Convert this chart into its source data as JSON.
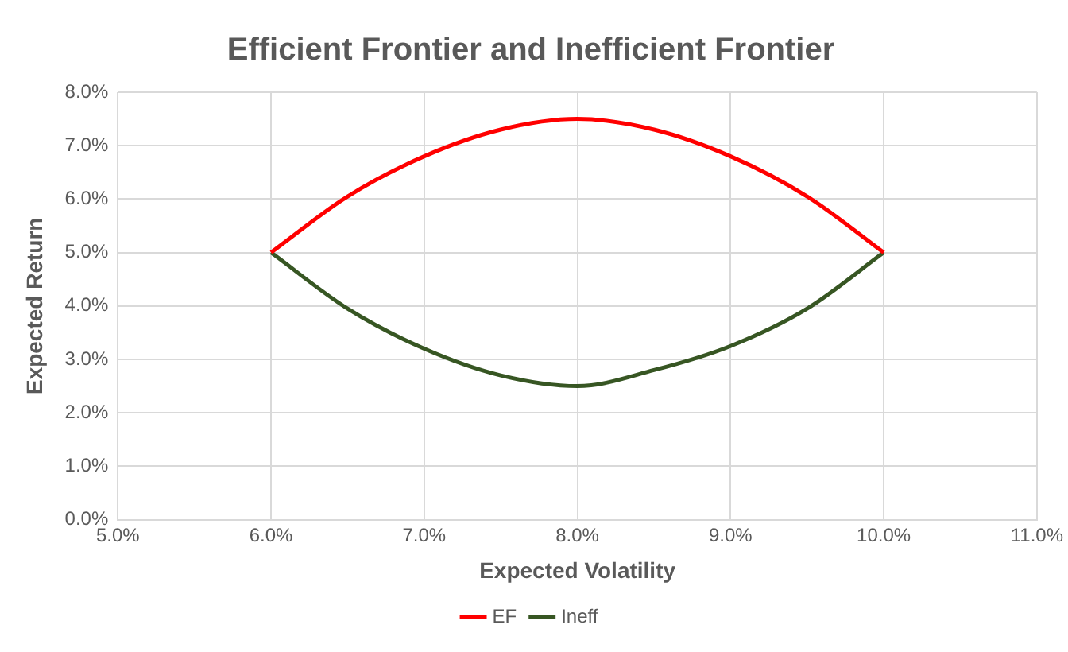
{
  "chart_data": {
    "type": "line",
    "title": "Efficient Frontier and Inefficient Frontier",
    "xlabel": "Expected Volatility",
    "ylabel": "Expected Return",
    "x": [
      6,
      6.5,
      7,
      7.5,
      8,
      8.5,
      9,
      9.5,
      10
    ],
    "series": [
      {
        "name": "EF",
        "color": "#ff0000",
        "values": [
          5,
          6.05,
          6.8,
          7.3,
          7.5,
          7.3,
          6.8,
          6.05,
          5
        ]
      },
      {
        "name": "Ineff",
        "color": "#375623",
        "values": [
          5,
          3.95,
          3.2,
          2.7,
          2.5,
          2.8,
          3.25,
          3.95,
          5
        ]
      }
    ],
    "xlim": [
      5,
      11
    ],
    "xticks": [
      {
        "value": 5,
        "label": "5.0%"
      },
      {
        "value": 6,
        "label": "6.0%"
      },
      {
        "value": 7,
        "label": "7.0%"
      },
      {
        "value": 8,
        "label": "8.0%"
      },
      {
        "value": 9,
        "label": "9.0%"
      },
      {
        "value": 10,
        "label": "10.0%"
      },
      {
        "value": 11,
        "label": "11.0%"
      }
    ],
    "ylim": [
      0,
      8
    ],
    "yticks": [
      {
        "value": 0,
        "label": "0.0%"
      },
      {
        "value": 1,
        "label": "1.0%"
      },
      {
        "value": 2,
        "label": "2.0%"
      },
      {
        "value": 3,
        "label": "3.0%"
      },
      {
        "value": 4,
        "label": "4.0%"
      },
      {
        "value": 5,
        "label": "5.0%"
      },
      {
        "value": 6,
        "label": "6.0%"
      },
      {
        "value": 7,
        "label": "7.0%"
      },
      {
        "value": 8,
        "label": "8.0%"
      }
    ],
    "grid": true,
    "legend": "bottom",
    "marker": "none",
    "line_style": "solid"
  }
}
